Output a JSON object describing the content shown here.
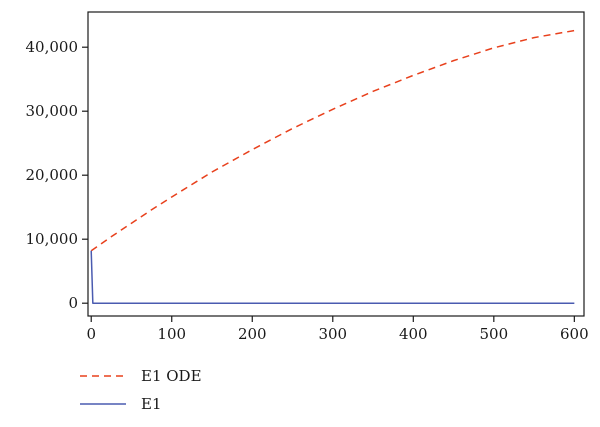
{
  "chart_data": {
    "type": "line",
    "title": "",
    "xlabel": "",
    "ylabel": "",
    "xlim": [
      -4,
      612
    ],
    "ylim": [
      -2000,
      45500
    ],
    "x_ticks": [
      0,
      100,
      200,
      300,
      400,
      500,
      600
    ],
    "x_tick_labels": [
      "0",
      "100",
      "200",
      "300",
      "400",
      "500",
      "600"
    ],
    "y_ticks": [
      0,
      10000,
      20000,
      30000,
      40000
    ],
    "y_tick_labels": [
      "0",
      "10,000",
      "20,000",
      "30,000",
      "40,000"
    ],
    "grid": false,
    "legend_position": "bottom-left",
    "series": [
      {
        "name": "E1 ODE",
        "color": "#e8401c",
        "dash": "dashed",
        "x": [
          0,
          25,
          50,
          75,
          100,
          150,
          200,
          250,
          300,
          350,
          400,
          450,
          500,
          550,
          600
        ],
        "y": [
          8200,
          10400,
          12500,
          14600,
          16600,
          20500,
          24000,
          27300,
          30300,
          33100,
          35600,
          37900,
          39900,
          41500,
          42600
        ]
      },
      {
        "name": "E1",
        "color": "#4a5bb0",
        "dash": "solid",
        "x": [
          0,
          0.01,
          2,
          100,
          200,
          300,
          400,
          500,
          600
        ],
        "y": [
          8200,
          8100,
          0,
          0,
          0,
          0,
          0,
          0,
          0
        ]
      }
    ]
  }
}
